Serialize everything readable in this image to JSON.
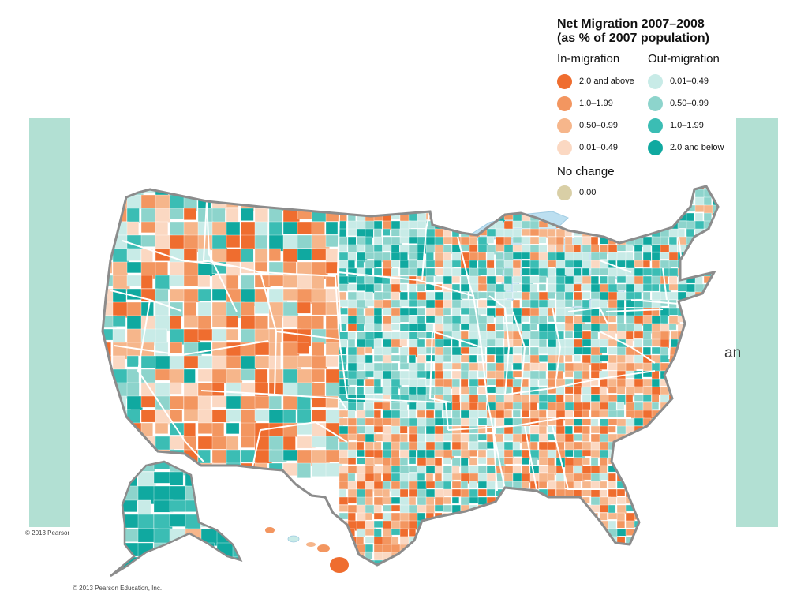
{
  "legend": {
    "title": "Net Migration 2007–2008",
    "subtitle": "(as % of 2007 population)",
    "in_label": "In-migration",
    "out_label": "Out-migration",
    "no_change_label": "No change",
    "in_items": [
      {
        "label": "2.0 and above",
        "color": "#ef6d2f"
      },
      {
        "label": "1.0–1.99",
        "color": "#f39660"
      },
      {
        "label": "0.50–0.99",
        "color": "#f6b68b"
      },
      {
        "label": "0.01–0.49",
        "color": "#fbd8c2"
      }
    ],
    "out_items": [
      {
        "label": "0.01–0.49",
        "color": "#c8ebe7"
      },
      {
        "label": "0.50–0.99",
        "color": "#8dd4cc"
      },
      {
        "label": "1.0–1.99",
        "color": "#3bbdb4"
      },
      {
        "label": "2.0 and below",
        "color": "#10a9a0"
      }
    ],
    "no_change_item": {
      "label": "0.00",
      "color": "#d9cfa6"
    }
  },
  "credit": "© 2013 Pearson Education, Inc.",
  "background": {
    "copyright_fragment": "© 2013 Pearson Education, Inc.",
    "text_fragment": "an",
    "band_color": "#b2e0d3"
  },
  "map": {
    "border_color": "#8c8c8c",
    "water_color": "#bcdff0",
    "state_line_color": "#ffffff"
  }
}
